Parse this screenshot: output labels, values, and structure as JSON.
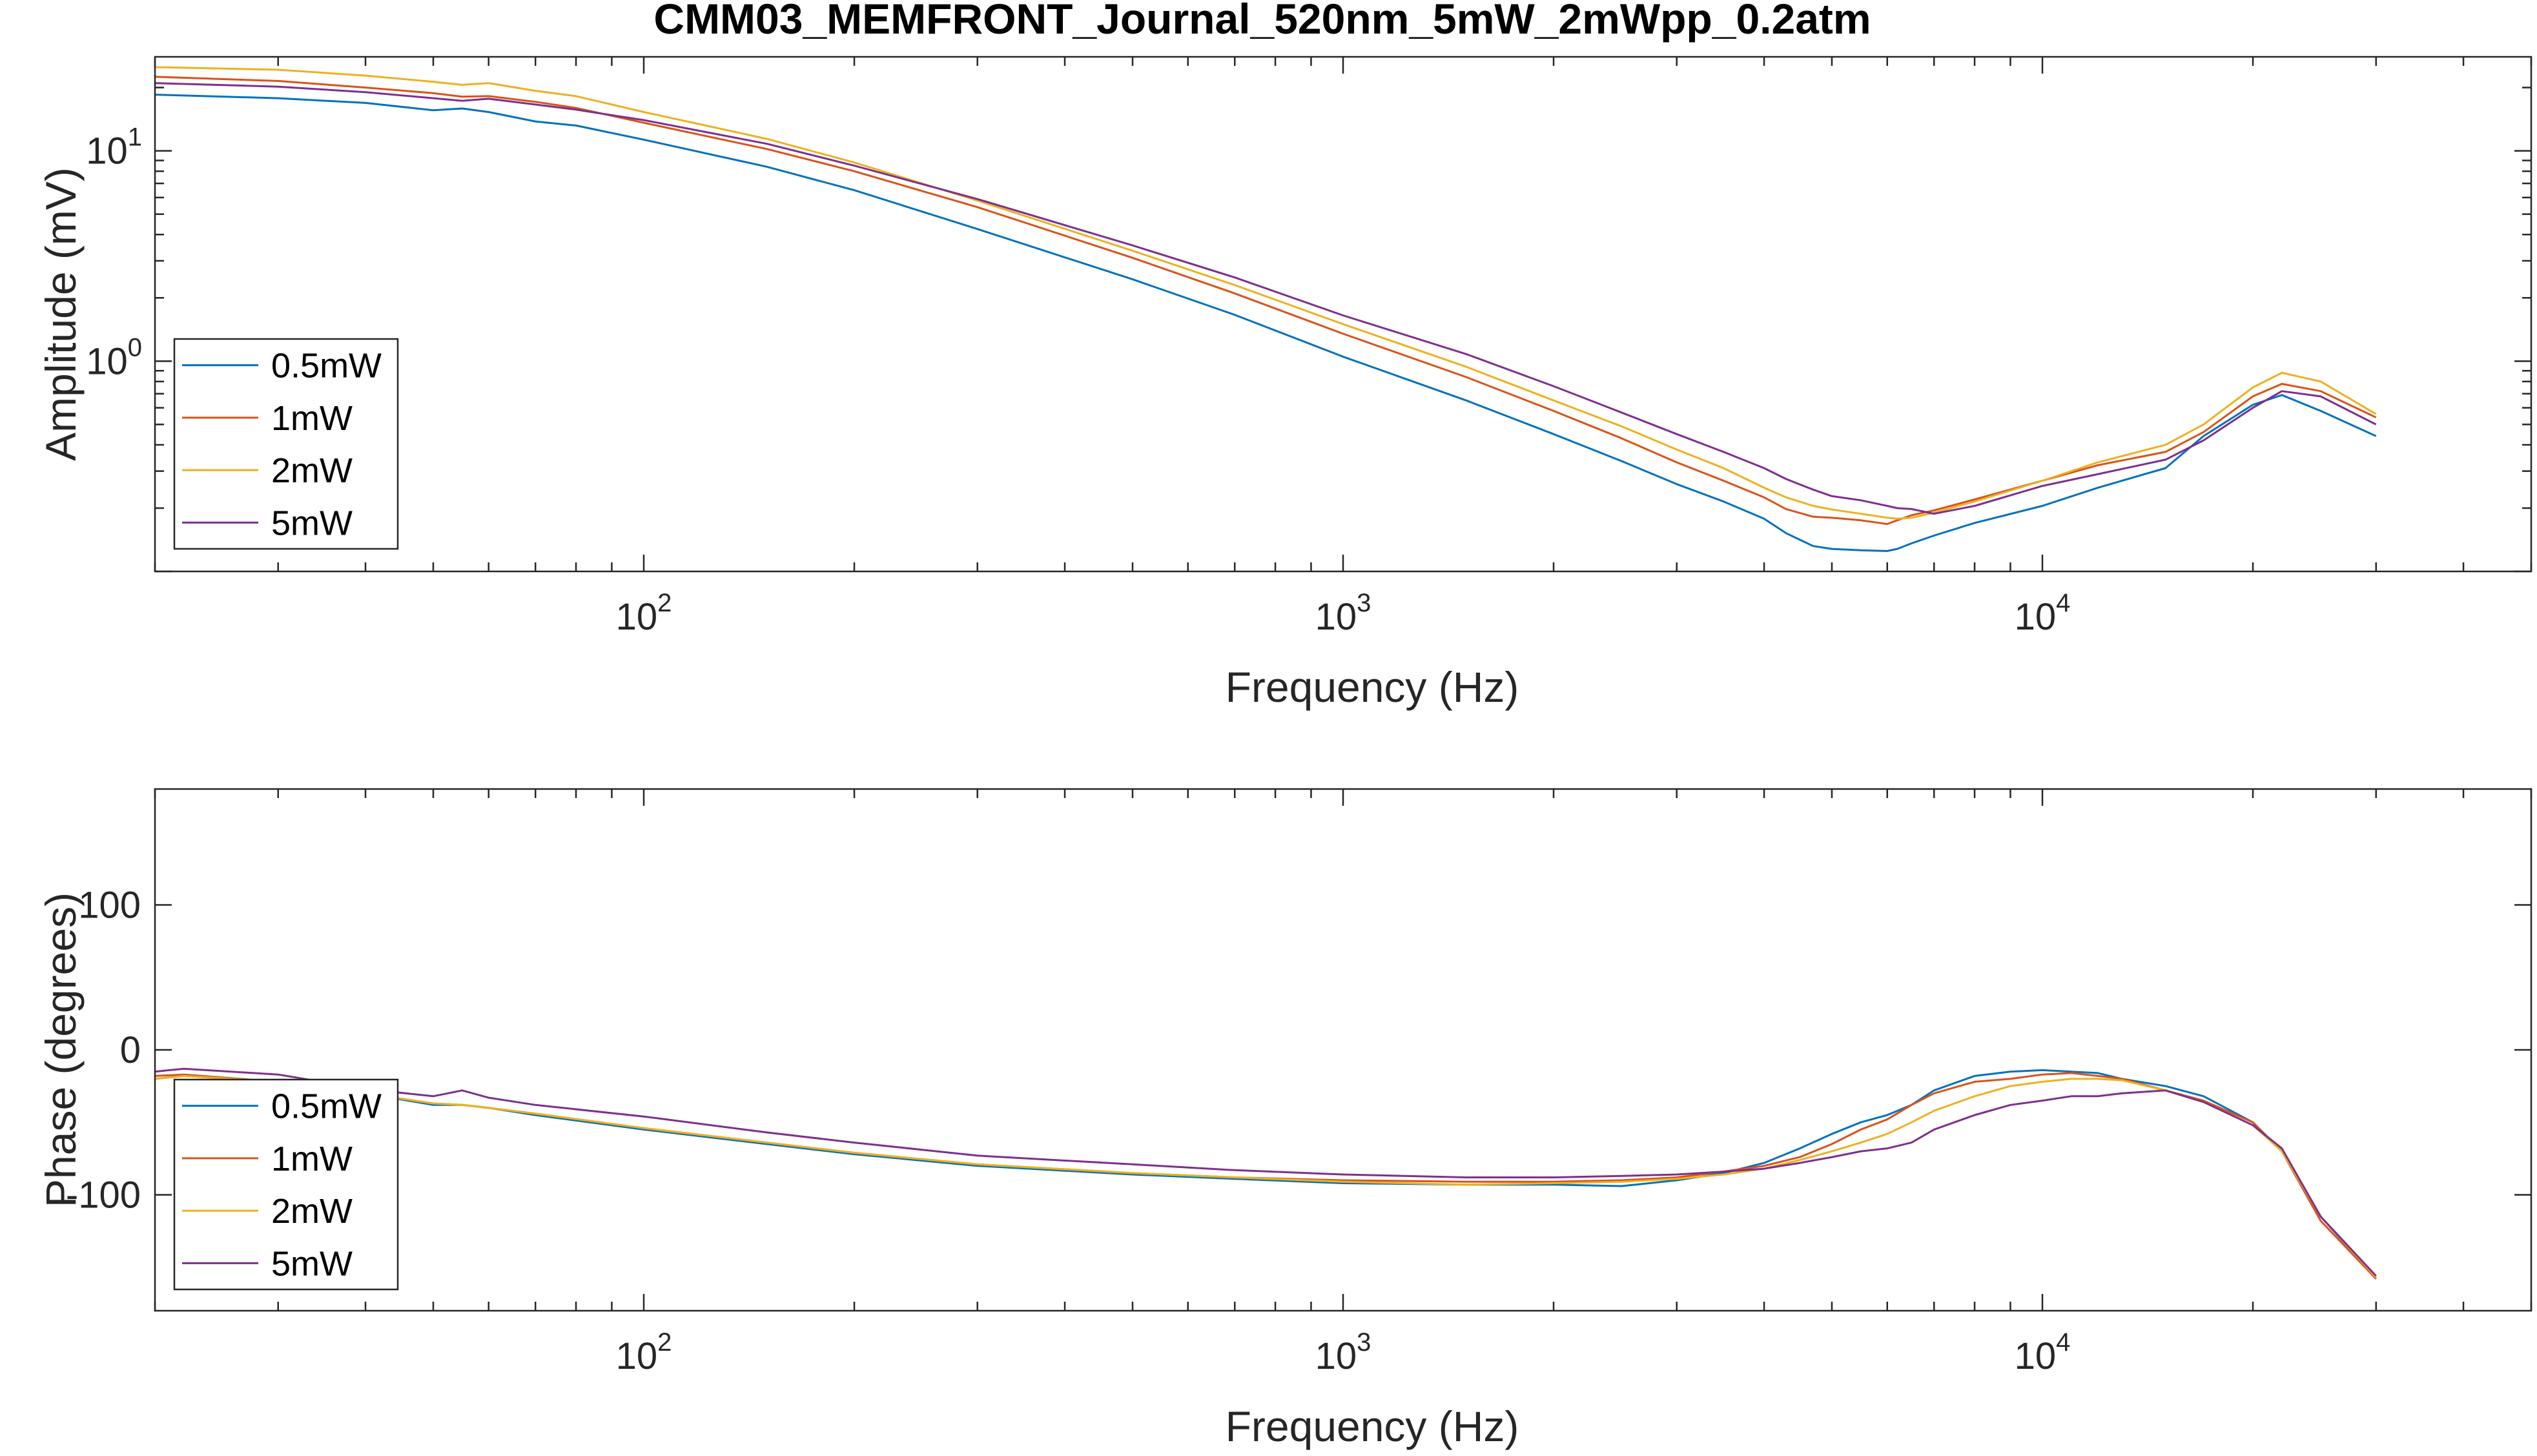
{
  "title": "CMM03_MEMFRONT_Journal_520nm_5mW_2mWpp_0.2atm",
  "colors": {
    "0.5mW": "#0072BD",
    "1mW": "#D95319",
    "2mW": "#EDB120",
    "5mW": "#7E2F8E",
    "axis": "#262626"
  },
  "chart_data": [
    {
      "type": "line",
      "xscale": "log",
      "yscale": "log",
      "xlim": [
        20,
        50000
      ],
      "ylim": [
        0.1,
        28
      ],
      "xlabel": "Frequency (Hz)",
      "ylabel": "Amplitude (mV)",
      "xticks": [
        {
          "value": 100,
          "base": "10",
          "exp": "2"
        },
        {
          "value": 1000,
          "base": "10",
          "exp": "3"
        },
        {
          "value": 10000,
          "base": "10",
          "exp": "4"
        }
      ],
      "yticks": [
        {
          "value": 1,
          "base": "10",
          "exp": "0"
        },
        {
          "value": 10,
          "base": "10",
          "exp": "1"
        }
      ],
      "legend_position": "bottom-left",
      "x": [
        20,
        30,
        40,
        50,
        55,
        60,
        70,
        80,
        100,
        150,
        200,
        300,
        500,
        700,
        1000,
        1500,
        2000,
        2500,
        3000,
        3500,
        4000,
        4300,
        4700,
        5000,
        5500,
        6000,
        6200,
        6500,
        7000,
        8000,
        10000,
        12000,
        15000,
        17000,
        20000,
        22000,
        25000,
        30000
      ],
      "series": [
        {
          "name": "0.5mW",
          "values": [
            18.5,
            17.8,
            16.9,
            15.6,
            15.9,
            15.3,
            13.8,
            13.2,
            11.3,
            8.4,
            6.5,
            4.25,
            2.45,
            1.66,
            1.05,
            0.65,
            0.45,
            0.335,
            0.26,
            0.215,
            0.178,
            0.152,
            0.132,
            0.128,
            0.126,
            0.125,
            0.128,
            0.136,
            0.148,
            0.17,
            0.205,
            0.25,
            0.31,
            0.44,
            0.62,
            0.69,
            0.58,
            0.44
          ]
        },
        {
          "name": "1mW",
          "values": [
            22.5,
            21.5,
            20.0,
            18.8,
            18.1,
            18.2,
            17.1,
            16.0,
            13.6,
            10.2,
            8.0,
            5.4,
            3.1,
            2.1,
            1.35,
            0.84,
            0.58,
            0.43,
            0.33,
            0.27,
            0.225,
            0.198,
            0.182,
            0.18,
            0.175,
            0.168,
            0.175,
            0.185,
            0.195,
            0.22,
            0.27,
            0.32,
            0.37,
            0.46,
            0.68,
            0.78,
            0.72,
            0.54
          ]
        },
        {
          "name": "2mW",
          "values": [
            25.0,
            24.3,
            22.8,
            21.3,
            20.6,
            21.0,
            19.3,
            18.2,
            15.3,
            11.4,
            8.8,
            5.8,
            3.35,
            2.3,
            1.5,
            0.94,
            0.65,
            0.49,
            0.38,
            0.31,
            0.25,
            0.225,
            0.205,
            0.197,
            0.188,
            0.18,
            0.178,
            0.18,
            0.19,
            0.215,
            0.27,
            0.33,
            0.4,
            0.5,
            0.75,
            0.88,
            0.8,
            0.56
          ]
        },
        {
          "name": "5mW",
          "values": [
            21.0,
            20.2,
            19.0,
            17.8,
            17.3,
            17.7,
            16.6,
            15.7,
            14.0,
            10.8,
            8.5,
            5.9,
            3.55,
            2.5,
            1.65,
            1.08,
            0.76,
            0.57,
            0.45,
            0.37,
            0.31,
            0.275,
            0.245,
            0.228,
            0.218,
            0.205,
            0.2,
            0.198,
            0.188,
            0.205,
            0.255,
            0.29,
            0.34,
            0.42,
            0.6,
            0.72,
            0.68,
            0.5
          ]
        }
      ]
    },
    {
      "type": "line",
      "xscale": "log",
      "yscale": "linear",
      "xlim": [
        20,
        50000
      ],
      "ylim": [
        -180,
        180
      ],
      "xlabel": "Frequency (Hz)",
      "ylabel": "Phase (degrees)",
      "xticks": [
        {
          "value": 100,
          "base": "10",
          "exp": "2"
        },
        {
          "value": 1000,
          "base": "10",
          "exp": "3"
        },
        {
          "value": 10000,
          "base": "10",
          "exp": "4"
        }
      ],
      "yticks": [
        {
          "value": -100,
          "label": "-100"
        },
        {
          "value": 0,
          "label": "0"
        },
        {
          "value": 100,
          "label": "100"
        }
      ],
      "legend_position": "bottom-left",
      "x": [
        20,
        22,
        30,
        40,
        50,
        55,
        60,
        70,
        100,
        150,
        200,
        300,
        500,
        700,
        1000,
        1500,
        2000,
        2500,
        3000,
        3500,
        4000,
        4500,
        5000,
        5500,
        6000,
        6500,
        7000,
        8000,
        9000,
        10000,
        11000,
        12000,
        13000,
        15000,
        17000,
        20000,
        22000,
        25000,
        30000
      ],
      "series": [
        {
          "name": "0.5mW",
          "values": [
            -20,
            -18,
            -22,
            -30,
            -38,
            -38,
            -40,
            -45,
            -55,
            -65,
            -72,
            -80,
            -86,
            -89,
            -92,
            -93,
            -93,
            -94,
            -90,
            -85,
            -78,
            -68,
            -58,
            -50,
            -45,
            -38,
            -28,
            -18,
            -15,
            -14,
            -15,
            -16,
            -20,
            -25,
            -32,
            -50,
            -70,
            -115,
            -158
          ]
        },
        {
          "name": "1mW",
          "values": [
            -18,
            -17,
            -22,
            -30,
            -37,
            -38,
            -40,
            -44,
            -54,
            -64,
            -71,
            -79,
            -85,
            -88,
            -90,
            -91,
            -91,
            -90,
            -88,
            -84,
            -80,
            -74,
            -65,
            -55,
            -48,
            -38,
            -30,
            -22,
            -20,
            -17,
            -16,
            -18,
            -20,
            -28,
            -35,
            -50,
            -70,
            -118,
            -158
          ]
        },
        {
          "name": "2mW",
          "values": [
            -20,
            -18,
            -22,
            -30,
            -37,
            -38,
            -40,
            -44,
            -54,
            -64,
            -71,
            -79,
            -85,
            -88,
            -91,
            -93,
            -92,
            -91,
            -89,
            -86,
            -82,
            -76,
            -70,
            -64,
            -58,
            -50,
            -42,
            -32,
            -25,
            -22,
            -20,
            -20,
            -21,
            -28,
            -36,
            -52,
            -70,
            -115,
            -157
          ]
        },
        {
          "name": "5mW",
          "values": [
            -15,
            -13,
            -17,
            -27,
            -32,
            -28,
            -33,
            -38,
            -46,
            -57,
            -64,
            -73,
            -79,
            -83,
            -86,
            -88,
            -88,
            -87,
            -86,
            -84,
            -82,
            -78,
            -74,
            -70,
            -68,
            -64,
            -55,
            -45,
            -38,
            -35,
            -32,
            -32,
            -30,
            -28,
            -36,
            -52,
            -68,
            -115,
            -156
          ]
        }
      ]
    }
  ]
}
